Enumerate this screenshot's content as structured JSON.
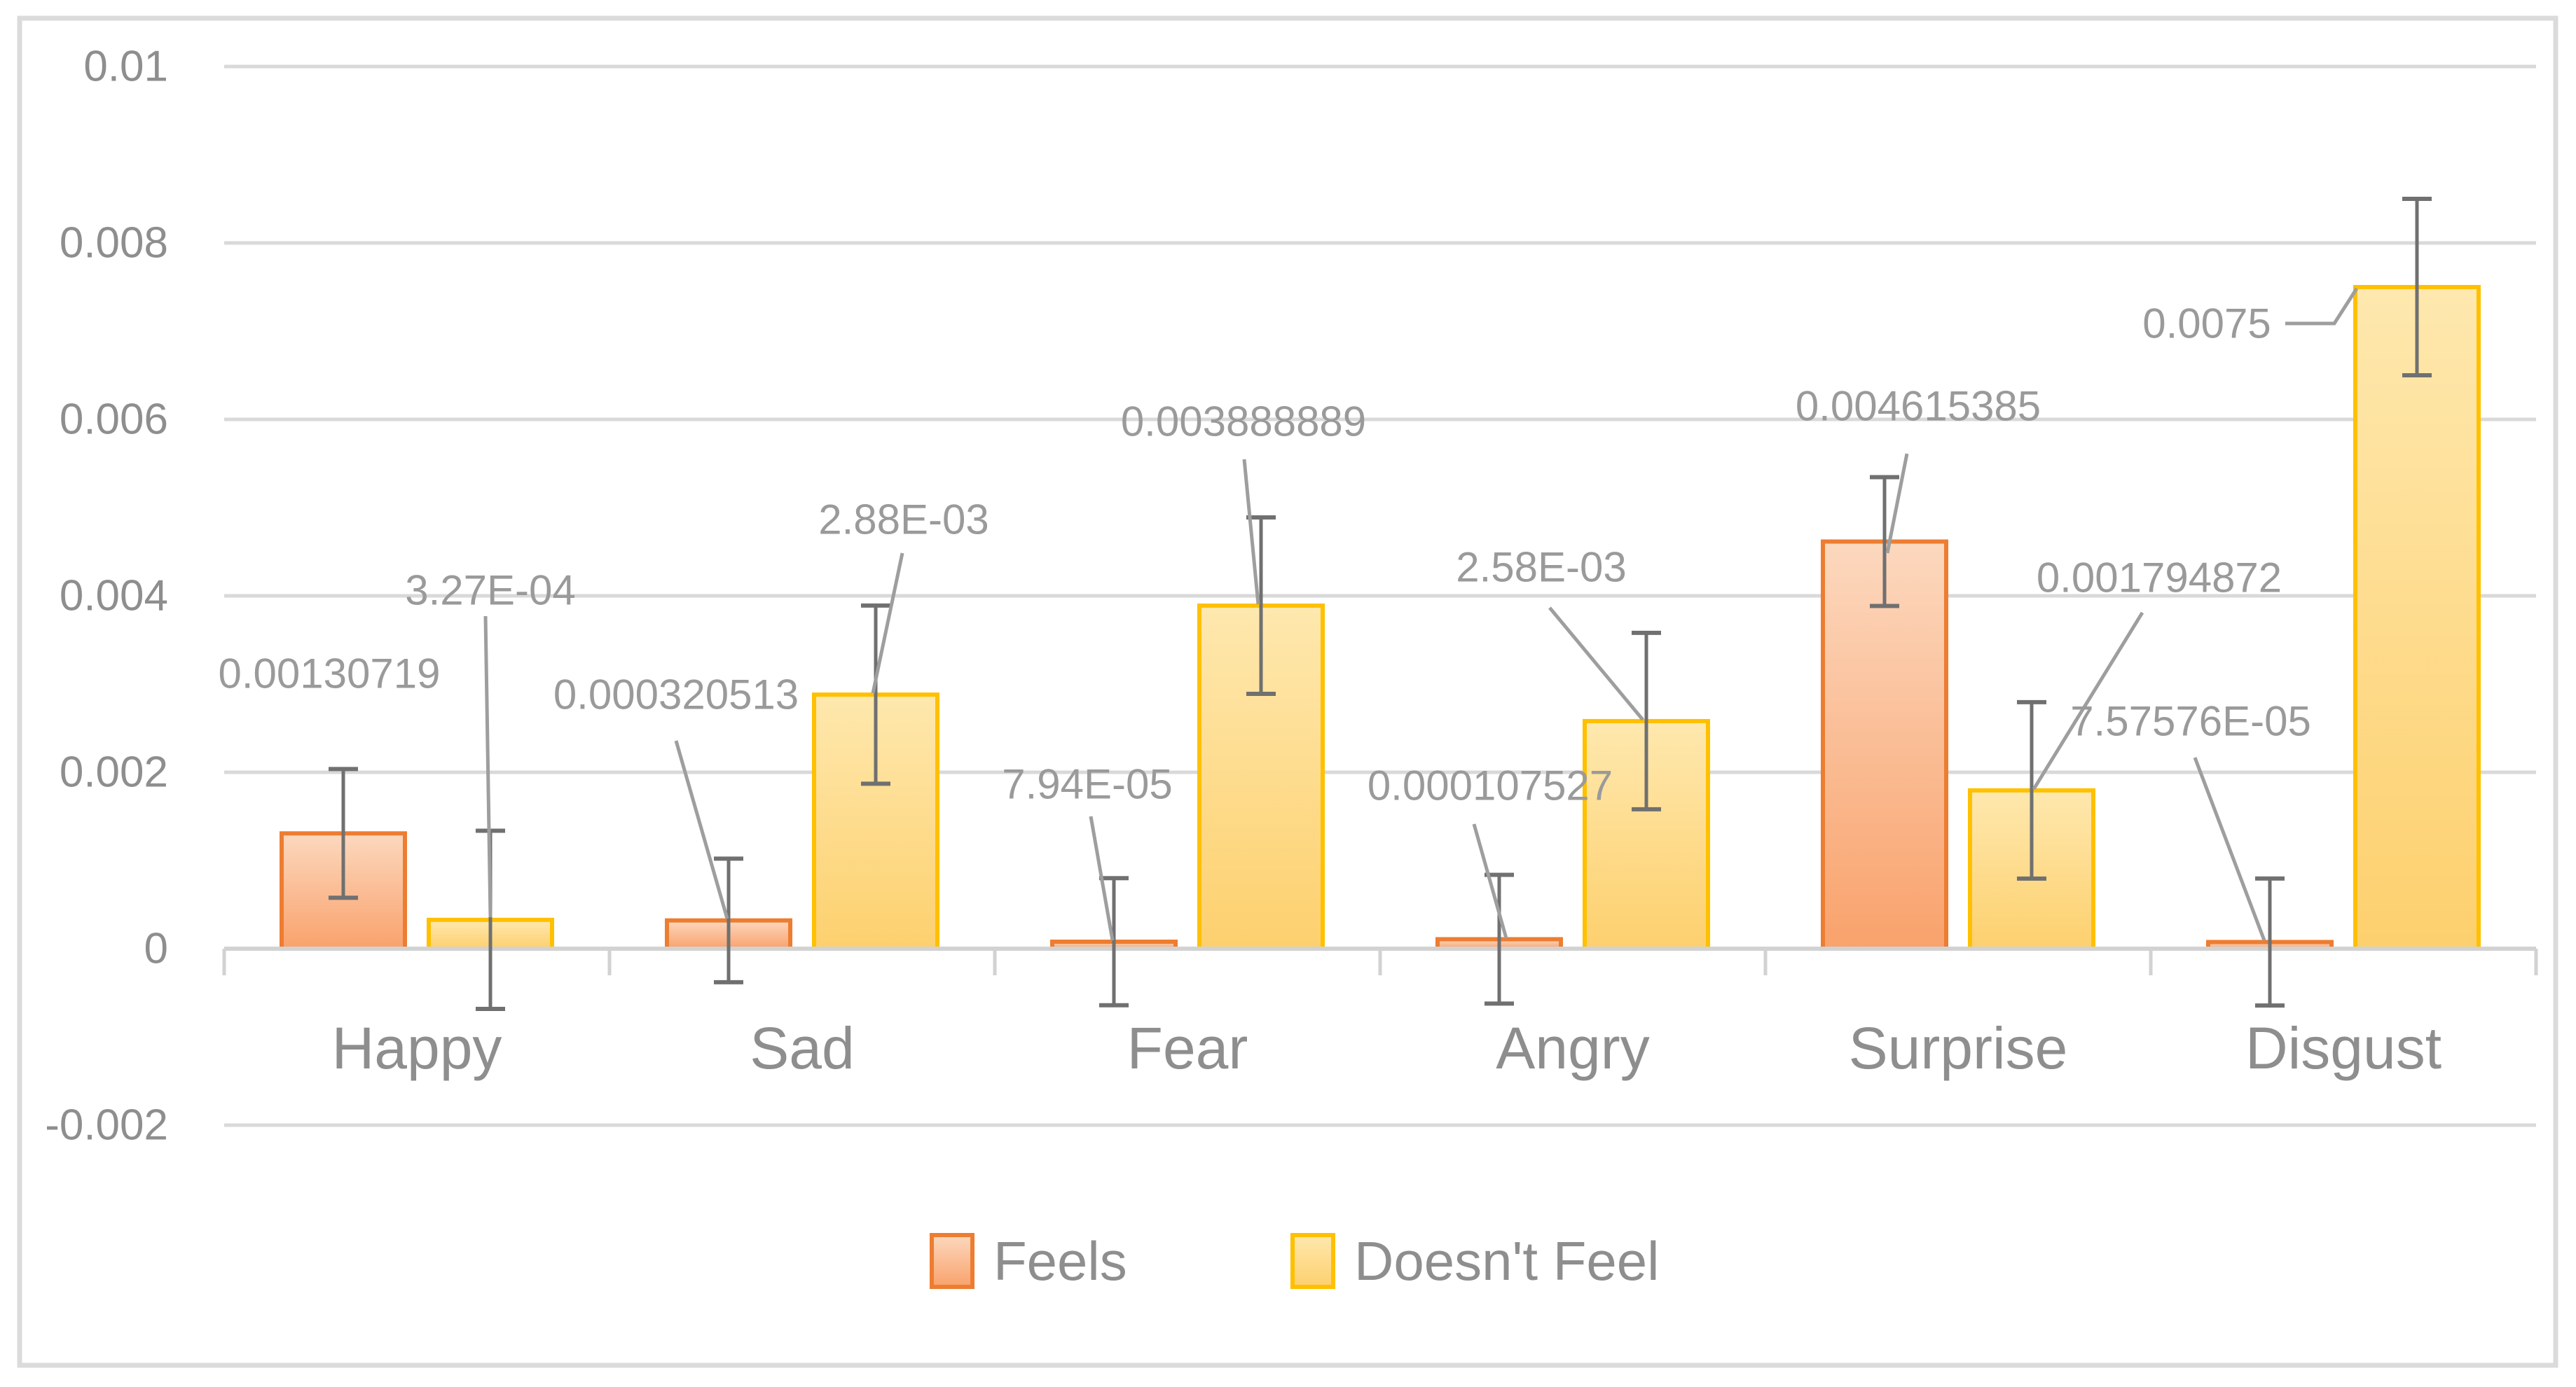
{
  "chart_data": {
    "type": "bar",
    "title": "",
    "categories": [
      "Happy",
      "Sad",
      "Fear",
      "Angry",
      "Surprise",
      "Disgust"
    ],
    "series": [
      {
        "name": "Feels",
        "border_color": "#ED7D31",
        "fill_top": "#FCD8BE",
        "fill_bottom": "#F9A26C",
        "values": [
          0.00130719,
          0.000320513,
          7.94e-05,
          0.000107527,
          0.004615385,
          7.57576e-05
        ],
        "error_bars": [
          0.00073,
          0.0007,
          0.00072,
          0.00073,
          0.00073,
          0.00072
        ],
        "data_labels": [
          "0.00130719",
          "0.000320513",
          "7.94E-05",
          "0.000107527",
          "0.004615385",
          "7.57576E-05"
        ]
      },
      {
        "name": "Doesn't Feel",
        "border_color": "#FFC000",
        "fill_top": "#FEE8AE",
        "fill_bottom": "#FDD06E",
        "values": [
          0.000327,
          0.00288,
          0.003888889,
          0.00258,
          0.001794872,
          0.0075
        ],
        "error_bars": [
          0.00101,
          0.00101,
          0.001,
          0.001,
          0.001,
          0.001
        ],
        "data_labels": [
          "3.27E-04",
          "2.88E-03",
          "0.003888889",
          "2.58E-03",
          "0.001794872",
          "0.0075"
        ]
      }
    ],
    "y_axis": {
      "min": -0.002,
      "max": 0.01,
      "step": 0.002,
      "tick_labels": [
        "0.01",
        "0.008",
        "0.006",
        "0.004",
        "0.002",
        "0",
        "-0.002"
      ]
    },
    "x_axis": {
      "tick_labels": [
        "Happy",
        "Sad",
        "Fear",
        "Angry",
        "Surprise",
        "Disgust"
      ]
    },
    "legend": {
      "position": "bottom",
      "items": [
        "Feels",
        "Doesn't Feel"
      ]
    },
    "grid": true,
    "colors": {
      "gridline": "#D9D9D9",
      "axis_line": "#D2D2D2",
      "frame": "#DBDBDB",
      "error_bar": "#707070",
      "leader_line": "#9E9E9E",
      "label_text": "#9A9A9A",
      "axis_text": "#8E8E8E",
      "background": "#FFFFFF"
    }
  }
}
